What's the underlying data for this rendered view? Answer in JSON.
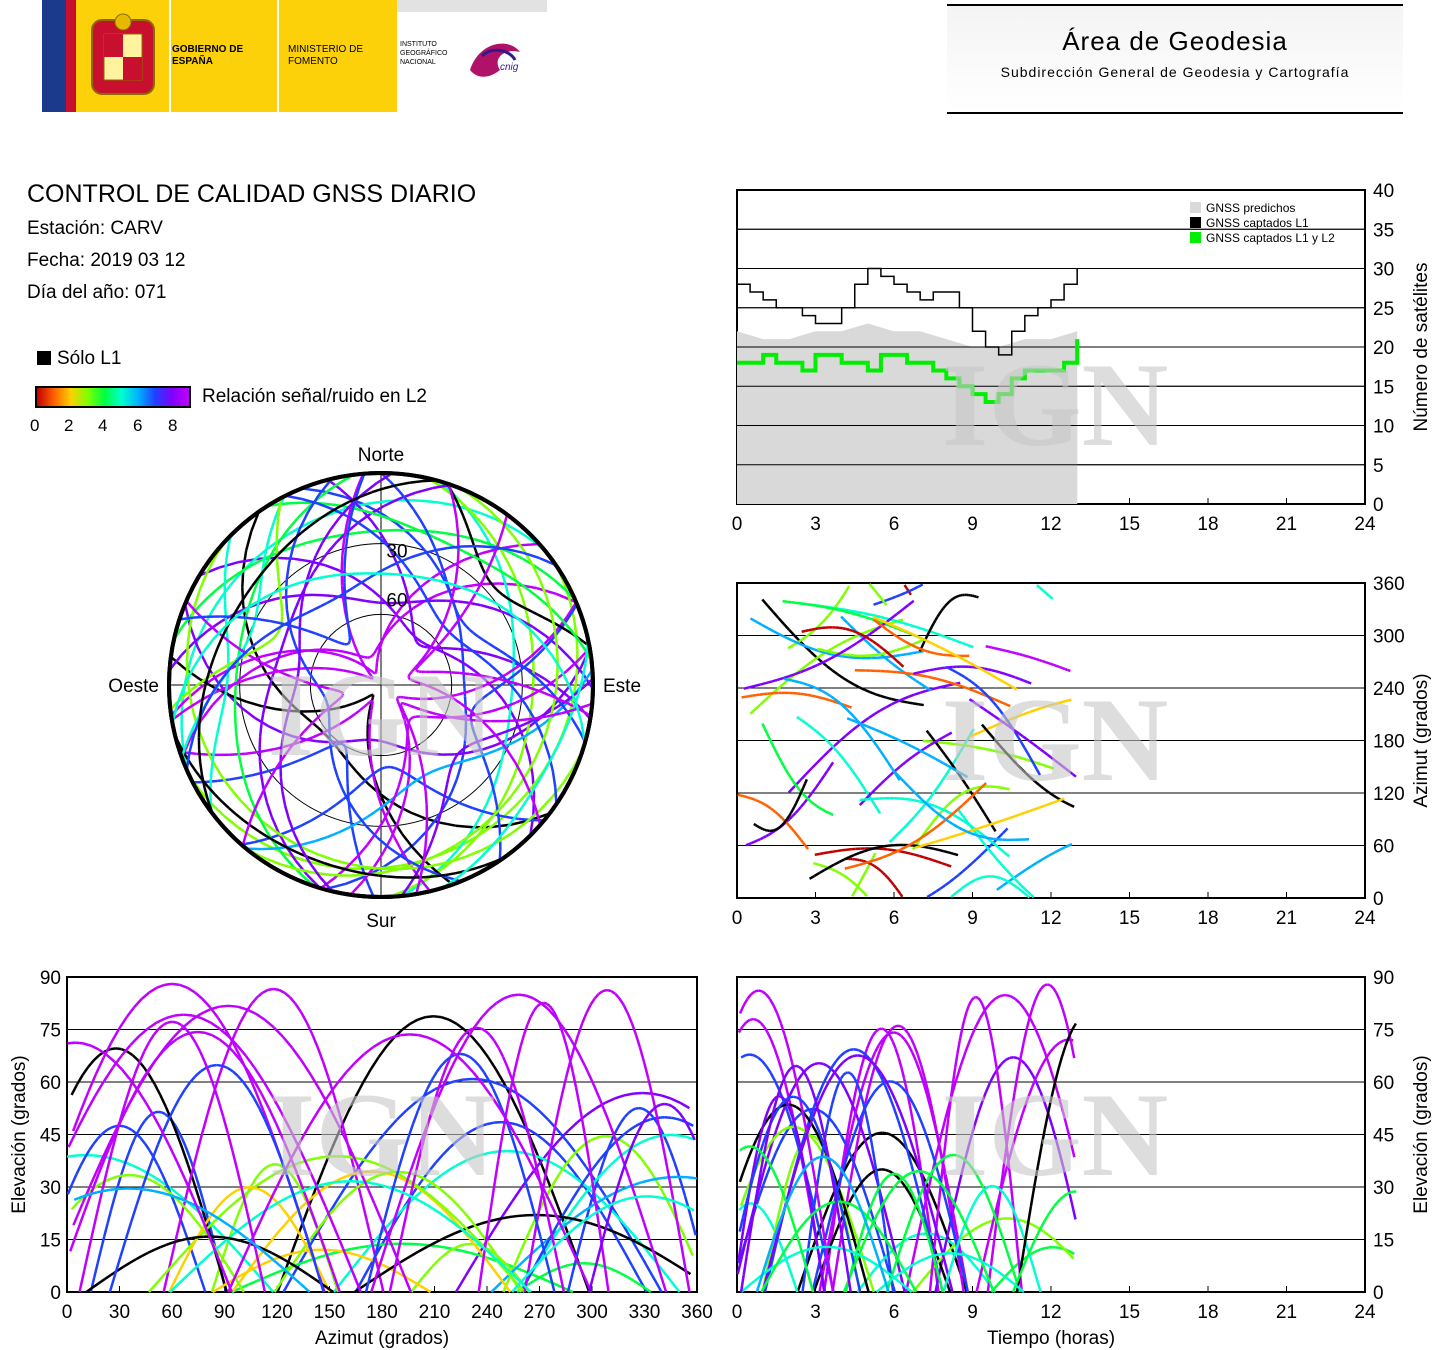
{
  "header": {
    "gov_name": "GOBIERNO DE ESPAÑA",
    "ministry_name": "MINISTERIO DE FOMENTO",
    "institute_name": "INSTITUTO GEOGRÁFICO NACIONAL",
    "cnig_logo_text": "cnig",
    "area_title": "Área de Geodesia",
    "area_subtitle": "Subdirección General de Geodesia y Cartografía"
  },
  "report": {
    "title": "CONTROL DE CALIDAD GNSS DIARIO",
    "station": "Estación: CARV",
    "date": "Fecha: 2019 03 12",
    "doy": "Día del año: 071"
  },
  "legend": {
    "l1_only": "Sólo L1",
    "snr_label": "Relación señal/ruido en L2",
    "snr_ticks": [
      "0",
      "2",
      "4",
      "6",
      "8"
    ]
  },
  "colors": {
    "predicted": "#d9d9d9",
    "l1": "#000000",
    "l1l2": "#00ee00",
    "snr_scale": [
      "#c00000",
      "#ff6000",
      "#ffd000",
      "#80ff00",
      "#00ff40",
      "#00ffd0",
      "#00b0ff",
      "#2040ff",
      "#8000ff",
      "#c000ff"
    ],
    "watermark": "#c8c8c8"
  },
  "watermark_text": "IGN",
  "chart_data": [
    {
      "type": "line",
      "id": "satellites",
      "ylabel": "Número de satélites",
      "x_ticks": [
        "0",
        "3",
        "6",
        "9",
        "12",
        "15",
        "18",
        "21",
        "24"
      ],
      "y_ticks": [
        "0",
        "5",
        "10",
        "15",
        "20",
        "25",
        "30",
        "35",
        "40"
      ],
      "xlim": [
        0,
        24
      ],
      "ylim": [
        0,
        40
      ],
      "legend_position": "top-right",
      "series": [
        {
          "name": "GNSS predichos",
          "style": "area",
          "x": [
            0,
            1,
            2,
            3,
            4,
            5,
            6,
            7,
            8,
            9,
            10,
            11,
            12,
            13
          ],
          "values": [
            22,
            21,
            21,
            22,
            22,
            23,
            22,
            22,
            21,
            20,
            20,
            21,
            21,
            22
          ]
        },
        {
          "name": "GNSS captados L1",
          "style": "step",
          "x": [
            0,
            0.5,
            1,
            1.5,
            2,
            2.5,
            3,
            3.5,
            4,
            4.5,
            5,
            5.5,
            6,
            6.5,
            7,
            7.5,
            8,
            8.5,
            9,
            9.5,
            10,
            10.5,
            11,
            11.5,
            12,
            12.5,
            13
          ],
          "values": [
            28,
            27,
            26,
            25,
            25,
            24,
            23,
            23,
            25,
            28,
            30,
            29,
            28,
            27,
            26,
            27,
            27,
            25,
            22,
            20,
            19,
            22,
            24,
            25,
            26,
            28,
            30
          ]
        },
        {
          "name": "GNSS captados L1 y L2",
          "style": "step",
          "x": [
            0,
            0.5,
            1,
            1.5,
            2,
            2.5,
            3,
            3.5,
            4,
            4.5,
            5,
            5.5,
            6,
            6.5,
            7,
            7.5,
            8,
            8.5,
            9,
            9.5,
            10,
            10.5,
            11,
            11.5,
            12,
            12.5,
            13
          ],
          "values": [
            18,
            18,
            19,
            18,
            18,
            17,
            19,
            19,
            18,
            18,
            17,
            19,
            19,
            18,
            18,
            17,
            16,
            15,
            14,
            13,
            14,
            16,
            17,
            17,
            17,
            18,
            21
          ]
        }
      ]
    },
    {
      "type": "scatter",
      "id": "azimuth_time",
      "ylabel": "Azimut (grados)",
      "x_ticks": [
        "0",
        "3",
        "6",
        "9",
        "12",
        "15",
        "18",
        "21",
        "24"
      ],
      "y_ticks": [
        "0",
        "60",
        "120",
        "180",
        "240",
        "300",
        "360"
      ],
      "xlim": [
        0,
        24
      ],
      "ylim": [
        0,
        360
      ]
    },
    {
      "type": "scatter",
      "id": "elevation_time",
      "xlabel": "Tiempo (horas)",
      "ylabel": "Elevación (grados)",
      "x_ticks": [
        "0",
        "3",
        "6",
        "9",
        "12",
        "15",
        "18",
        "21",
        "24"
      ],
      "y_ticks": [
        "0",
        "15",
        "30",
        "45",
        "60",
        "75",
        "90"
      ],
      "xlim": [
        0,
        24
      ],
      "ylim": [
        0,
        90
      ]
    },
    {
      "type": "scatter",
      "id": "elevation_azimuth",
      "xlabel": "Azimut (grados)",
      "ylabel": "Elevación (grados)",
      "x_ticks": [
        "0",
        "30",
        "60",
        "90",
        "120",
        "150",
        "180",
        "210",
        "240",
        "270",
        "300",
        "330",
        "360"
      ],
      "y_ticks": [
        "0",
        "15",
        "30",
        "45",
        "60",
        "75",
        "90"
      ],
      "xlim": [
        0,
        360
      ],
      "ylim": [
        0,
        90
      ]
    },
    {
      "type": "scatter",
      "id": "skyplot",
      "direction_labels": {
        "north": "Norte",
        "south": "Sur",
        "east": "Este",
        "west": "Oeste"
      },
      "ring_labels": [
        "30",
        "60"
      ]
    }
  ]
}
